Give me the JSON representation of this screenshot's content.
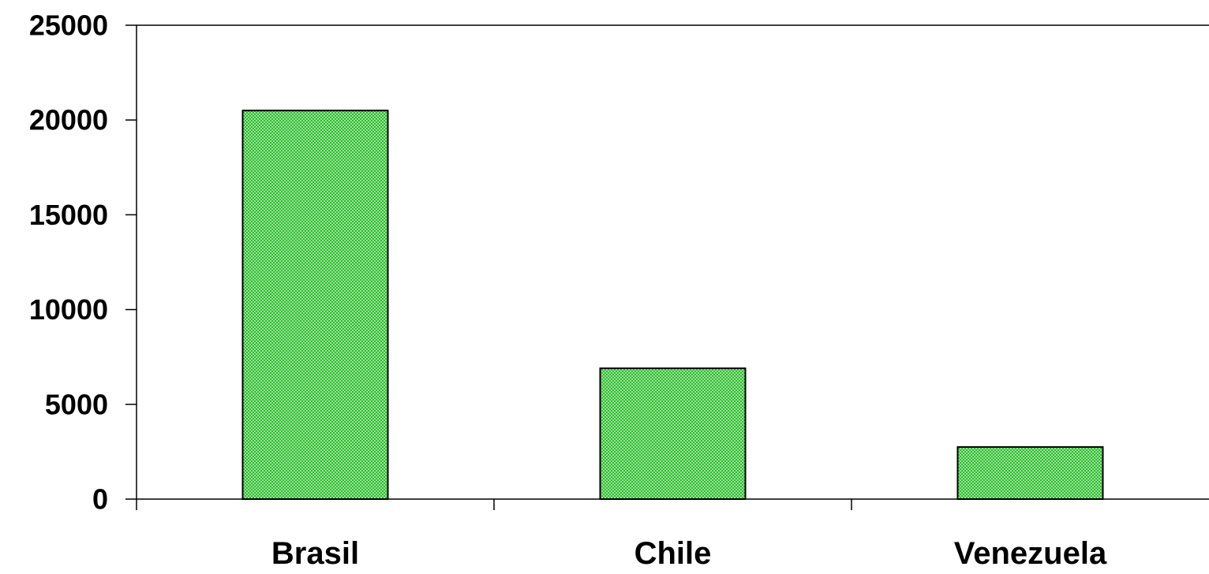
{
  "chart_data": {
    "type": "bar",
    "categories": [
      "Brasil",
      "Chile",
      "Venezuela"
    ],
    "values": [
      20500,
      6900,
      2750
    ],
    "ylim": [
      0,
      25000
    ],
    "yticks": [
      0,
      5000,
      10000,
      15000,
      20000,
      25000
    ],
    "title": "",
    "xlabel": "",
    "ylabel": "",
    "grid": false,
    "legend": "none",
    "colors": {
      "bar_fill": "#2db82d",
      "bar_dots": "#9be69b",
      "bar_stroke": "#000000",
      "axis": "#000000"
    }
  }
}
